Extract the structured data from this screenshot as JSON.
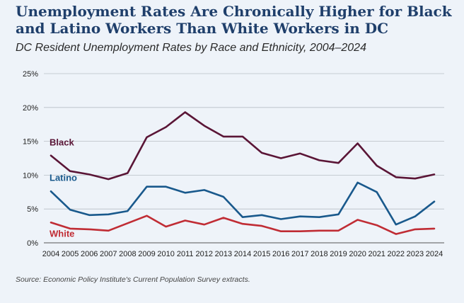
{
  "header": {
    "title": "Unemployment Rates Are Chronically Higher for Black and Latino Workers Than White Workers in DC",
    "subtitle": "DC Resident Unemployment Rates by Race and Ethnicity, 2004–2024"
  },
  "footer": {
    "source": "Source: Economic Policy Institute's Current Population Survey extracts."
  },
  "chart_data": {
    "type": "line",
    "title": "DC Resident Unemployment Rates by Race and Ethnicity, 2004–2024",
    "xlabel": "",
    "ylabel": "",
    "ylim": [
      0,
      25
    ],
    "yticks": [
      0,
      5,
      10,
      15,
      20,
      25
    ],
    "ytick_labels": [
      "0%",
      "5%",
      "10%",
      "15%",
      "20%",
      "25%"
    ],
    "grid": true,
    "categories": [
      "2004",
      "2005",
      "2006",
      "2007",
      "2008",
      "2009",
      "2010",
      "2011",
      "2012",
      "2013",
      "2014",
      "2015",
      "2016",
      "2017",
      "2018",
      "2019",
      "2020",
      "2021",
      "2022",
      "2023",
      "2024"
    ],
    "series": [
      {
        "name": "Black",
        "color": "#5a1536",
        "values": [
          12.9,
          10.6,
          10.1,
          9.4,
          10.3,
          15.6,
          17.1,
          19.3,
          17.3,
          15.7,
          15.7,
          13.3,
          12.5,
          13.2,
          12.2,
          11.8,
          14.7,
          11.4,
          9.7,
          9.5,
          10.1
        ]
      },
      {
        "name": "Latino",
        "color": "#19598c",
        "values": [
          7.6,
          4.9,
          4.1,
          4.2,
          4.7,
          8.3,
          8.3,
          7.4,
          7.8,
          6.8,
          3.8,
          4.1,
          3.5,
          3.9,
          3.8,
          4.2,
          8.9,
          7.5,
          2.7,
          3.9,
          6.1
        ]
      },
      {
        "name": "White",
        "color": "#c02c34",
        "values": [
          3.0,
          2.1,
          2.0,
          1.8,
          2.9,
          4.0,
          2.4,
          3.3,
          2.7,
          3.7,
          2.8,
          2.5,
          1.7,
          1.7,
          1.8,
          1.8,
          3.4,
          2.6,
          1.3,
          2.0,
          2.1
        ]
      }
    ]
  }
}
